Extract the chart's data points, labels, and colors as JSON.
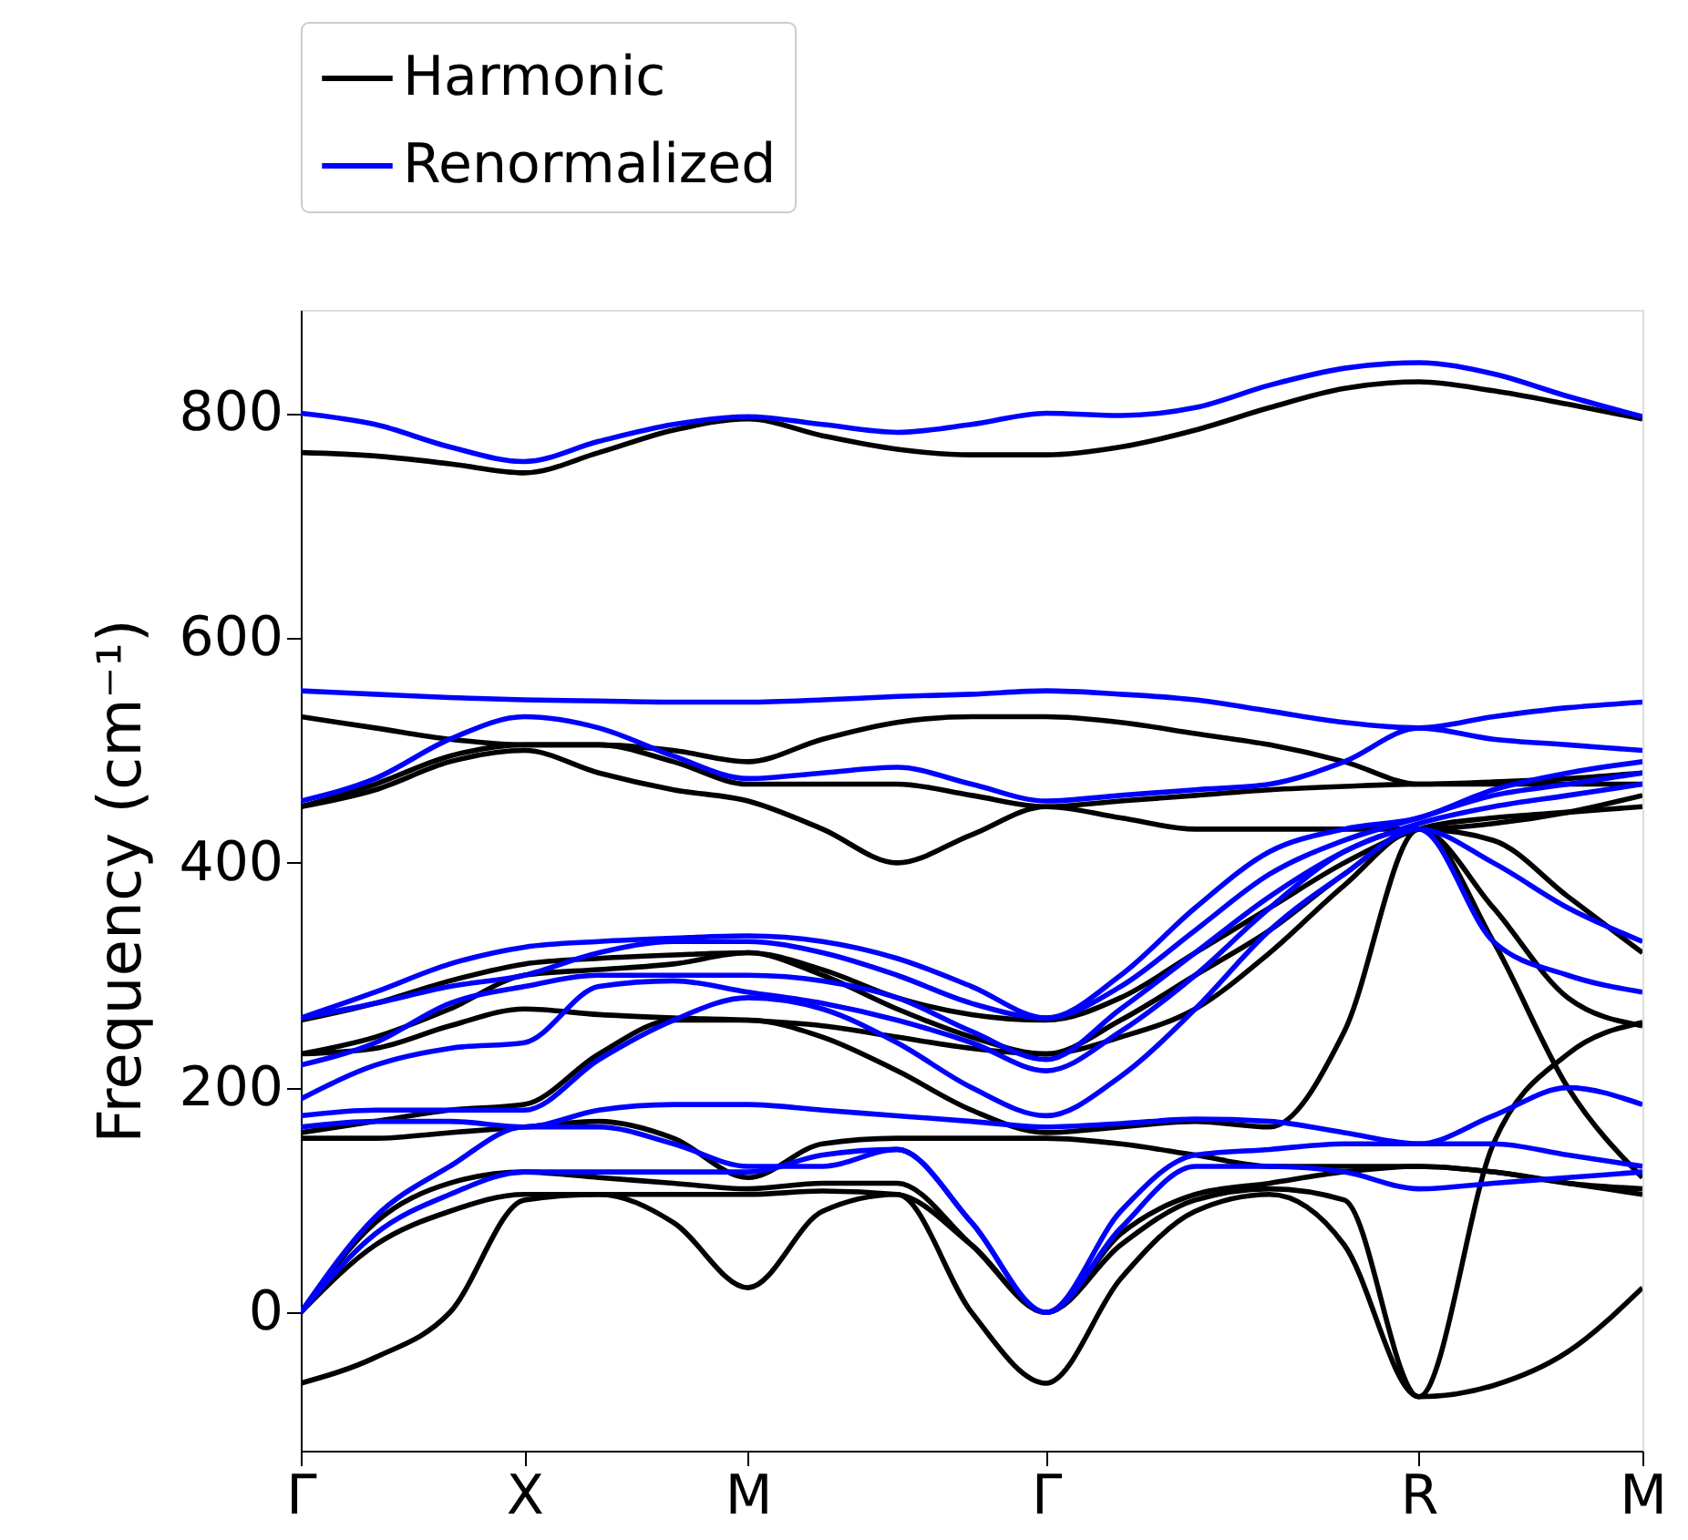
{
  "chart_data": {
    "type": "line",
    "ylabel": "Frequency (cm⁻¹)",
    "categories": [
      "Γ",
      null,
      null,
      "X",
      null,
      null,
      "M",
      null,
      null,
      null,
      "Γ",
      null,
      null,
      null,
      null,
      "R",
      null,
      null,
      "M"
    ],
    "ylim": [
      -123,
      892
    ],
    "yticks": [
      0,
      200,
      400,
      600,
      800
    ],
    "grid": false,
    "legend": "top left",
    "line_style": "solid",
    "marker": "none",
    "series": [
      {
        "name": "Harmonic",
        "color": "#000000",
        "values": [
          -63,
          -40,
          0,
          100,
          105,
          80,
          22,
          90,
          105,
          0,
          -63,
          30,
          90,
          105,
          60,
          -75,
          -65,
          -35,
          22
        ]
      },
      {
        "color": "#000000",
        "values": [
          0,
          60,
          90,
          105,
          105,
          105,
          105,
          108,
          105,
          60,
          0,
          60,
          100,
          110,
          100,
          -75,
          150,
          230,
          258
        ]
      },
      {
        "color": "#000000",
        "values": [
          0,
          80,
          115,
          125,
          120,
          115,
          110,
          115,
          115,
          60,
          0,
          70,
          105,
          115,
          125,
          130,
          125,
          115,
          105
        ]
      },
      {
        "color": "#000000",
        "values": [
          155,
          155,
          160,
          165,
          170,
          155,
          120,
          150,
          155,
          155,
          155,
          150,
          140,
          130,
          130,
          130,
          125,
          115,
          110
        ]
      },
      {
        "color": "#000000",
        "values": [
          160,
          170,
          180,
          185,
          230,
          260,
          260,
          245,
          215,
          180,
          160,
          165,
          170,
          165,
          250,
          430,
          330,
          200,
          120
        ]
      },
      {
        "color": "#000000",
        "values": [
          230,
          235,
          255,
          270,
          265,
          262,
          260,
          255,
          245,
          235,
          230,
          245,
          270,
          320,
          380,
          430,
          360,
          280,
          255
        ]
      },
      {
        "color": "#000000",
        "values": [
          230,
          245,
          270,
          300,
          305,
          310,
          320,
          300,
          270,
          245,
          230,
          260,
          300,
          340,
          390,
          430,
          420,
          370,
          320
        ]
      },
      {
        "color": "#000000",
        "values": [
          260,
          275,
          295,
          310,
          315,
          318,
          320,
          305,
          280,
          265,
          260,
          280,
          320,
          360,
          400,
          430,
          440,
          445,
          450
        ]
      },
      {
        "color": "#000000",
        "values": [
          450,
          465,
          490,
          500,
          480,
          465,
          455,
          430,
          400,
          425,
          450,
          440,
          430,
          430,
          430,
          430,
          435,
          445,
          460
        ]
      },
      {
        "color": "#000000",
        "values": [
          450,
          470,
          495,
          505,
          505,
          490,
          470,
          470,
          470,
          460,
          450,
          455,
          460,
          465,
          468,
          470,
          470,
          470,
          470
        ]
      },
      {
        "color": "#000000",
        "values": [
          530,
          520,
          510,
          505,
          505,
          500,
          490,
          510,
          525,
          530,
          530,
          525,
          515,
          505,
          490,
          470,
          472,
          475,
          480
        ]
      },
      {
        "color": "#000000",
        "values": [
          765,
          762,
          755,
          747,
          765,
          785,
          795,
          780,
          768,
          763,
          763,
          770,
          785,
          805,
          822,
          828,
          820,
          808,
          795
        ]
      },
      {
        "name": "Renormalized",
        "color": "#0000ff",
        "values": [
          0,
          70,
          105,
          125,
          125,
          125,
          125,
          140,
          145,
          80,
          0,
          75,
          130,
          130,
          125,
          110,
          115,
          120,
          125
        ]
      },
      {
        "color": "#0000ff",
        "values": [
          0,
          85,
          130,
          165,
          165,
          150,
          130,
          130,
          145,
          80,
          0,
          90,
          140,
          145,
          150,
          150,
          150,
          140,
          130
        ]
      },
      {
        "color": "#0000ff",
        "values": [
          165,
          170,
          170,
          165,
          180,
          185,
          185,
          180,
          175,
          170,
          165,
          168,
          172,
          170,
          160,
          150,
          175,
          200,
          185
        ]
      },
      {
        "color": "#0000ff",
        "values": [
          175,
          180,
          180,
          180,
          225,
          260,
          280,
          270,
          240,
          200,
          175,
          210,
          270,
          340,
          390,
          430,
          330,
          300,
          285
        ]
      },
      {
        "color": "#0000ff",
        "values": [
          190,
          220,
          235,
          240,
          290,
          295,
          285,
          275,
          260,
          240,
          215,
          250,
          300,
          360,
          410,
          430,
          400,
          360,
          330
        ]
      },
      {
        "color": "#0000ff",
        "values": [
          220,
          240,
          275,
          290,
          300,
          300,
          300,
          295,
          280,
          250,
          225,
          270,
          320,
          370,
          410,
          435,
          450,
          460,
          470
        ]
      },
      {
        "color": "#0000ff",
        "values": [
          262,
          275,
          290,
          300,
          320,
          330,
          330,
          320,
          300,
          275,
          262,
          290,
          340,
          390,
          420,
          440,
          460,
          470,
          480
        ]
      },
      {
        "color": "#0000ff",
        "values": [
          262,
          285,
          310,
          325,
          330,
          333,
          335,
          330,
          315,
          290,
          262,
          300,
          360,
          410,
          430,
          440,
          465,
          480,
          490
        ]
      },
      {
        "color": "#0000ff",
        "values": [
          455,
          475,
          510,
          530,
          520,
          495,
          475,
          480,
          485,
          470,
          455,
          460,
          465,
          470,
          490,
          520,
          510,
          505,
          500
        ]
      },
      {
        "color": "#0000ff",
        "values": [
          553,
          550,
          547,
          545,
          544,
          543,
          543,
          545,
          548,
          550,
          553,
          550,
          545,
          535,
          525,
          520,
          530,
          538,
          543
        ]
      },
      {
        "color": "#0000ff",
        "values": [
          800,
          790,
          770,
          757,
          775,
          790,
          797,
          790,
          783,
          790,
          800,
          798,
          805,
          825,
          840,
          845,
          835,
          815,
          797
        ]
      }
    ]
  }
}
